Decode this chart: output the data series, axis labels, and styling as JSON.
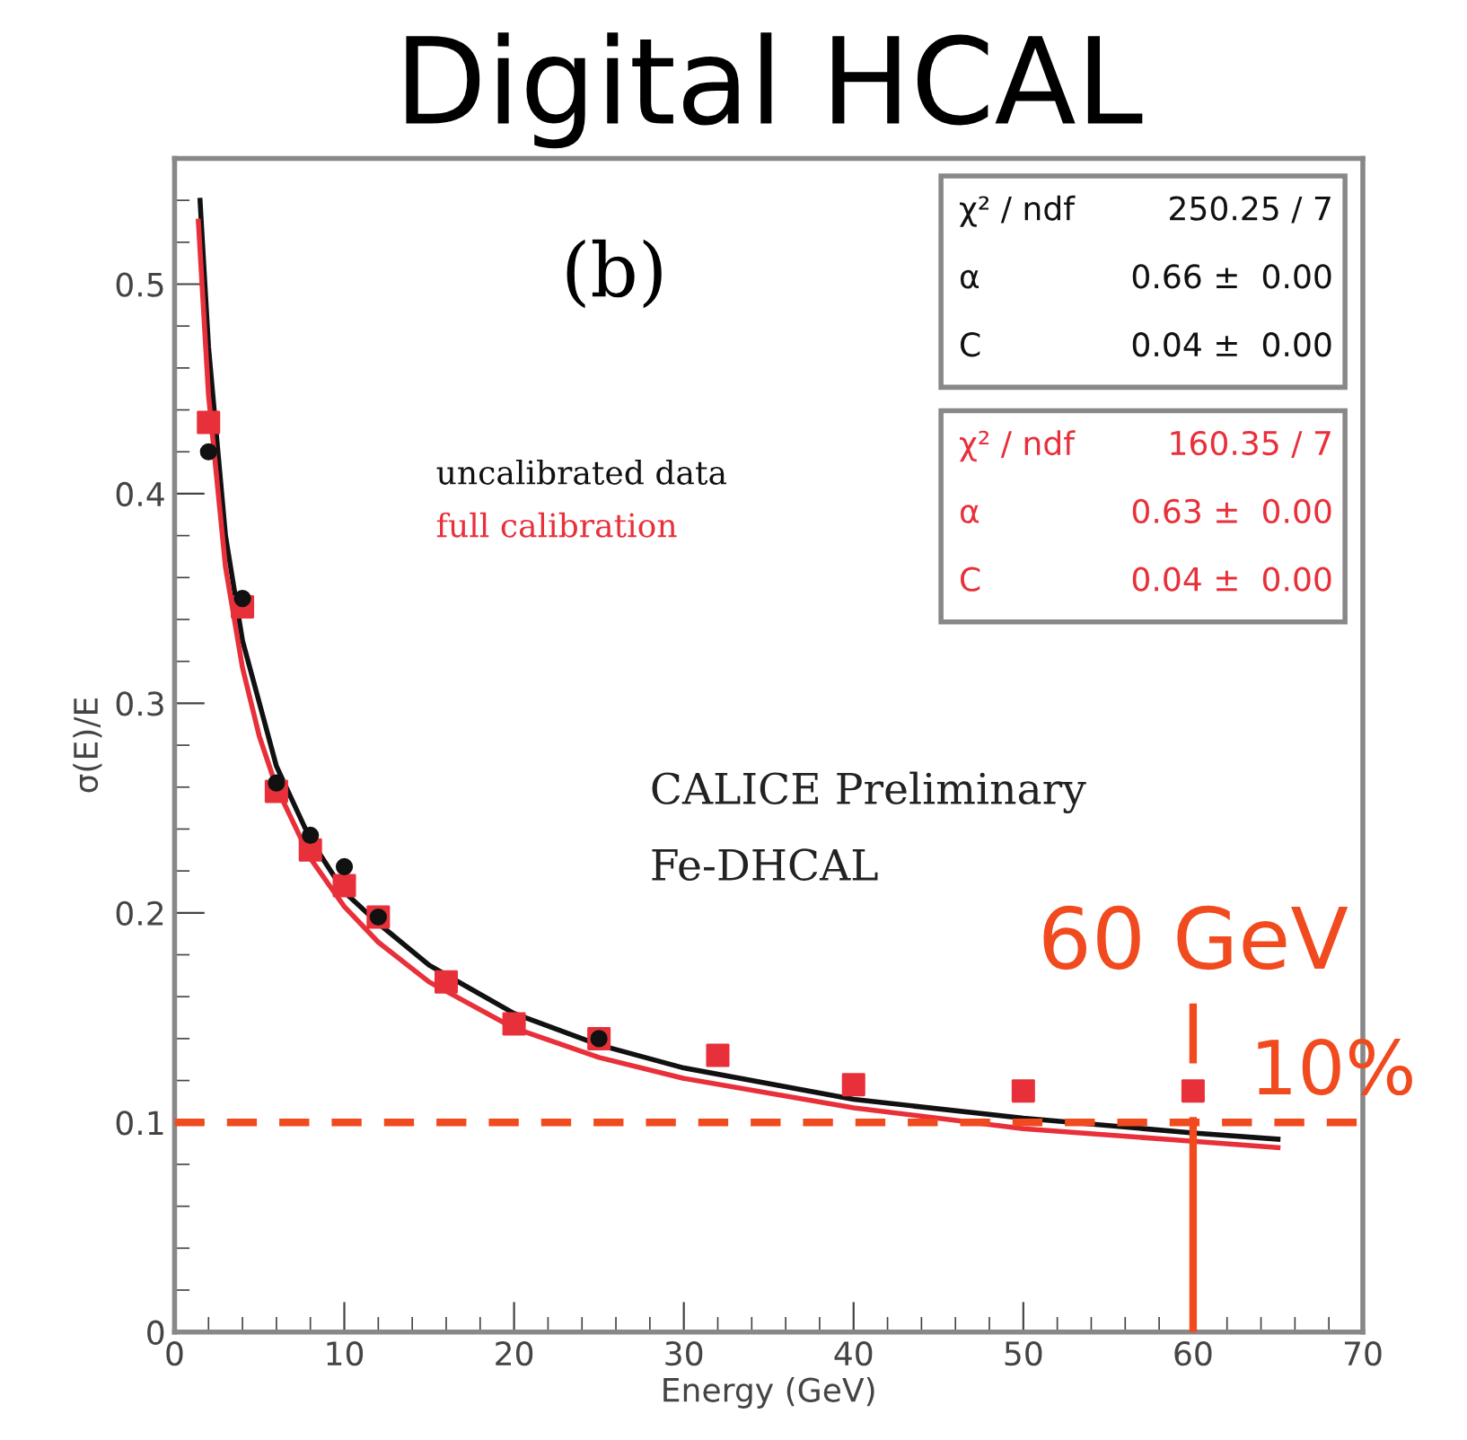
{
  "chart_data": {
    "type": "scatter",
    "title": "Digital HCAL",
    "xlabel": "Energy (GeV)",
    "ylabel": "σ(E)/E",
    "xlim": [
      0,
      70
    ],
    "xticks": [
      0,
      10,
      20,
      30,
      40,
      50,
      60,
      70
    ],
    "ylim": [
      0,
      0.56
    ],
    "yticks": [
      0,
      0.1,
      0.2,
      0.3,
      0.4,
      0.5
    ],
    "grid": false,
    "series": [
      {
        "name": "uncalibrated data",
        "marker": "circle",
        "color": "#111111",
        "x": [
          2,
          4,
          6,
          8,
          10,
          12,
          25
        ],
        "values": [
          0.42,
          0.35,
          0.262,
          0.237,
          0.222,
          0.198,
          0.14
        ]
      },
      {
        "name": "full calibration",
        "marker": "square",
        "color": "#e8303a",
        "x": [
          2,
          4,
          6,
          8,
          10,
          12,
          16,
          20,
          25,
          32,
          40,
          50,
          60
        ],
        "values": [
          0.434,
          0.346,
          0.258,
          0.23,
          0.213,
          0.198,
          0.167,
          0.147,
          0.14,
          0.132,
          0.118,
          0.115,
          0.115
        ]
      },
      {
        "type": "line",
        "marker": "none",
        "color": "#111111",
        "x": [
          1.5,
          2,
          3,
          4,
          5,
          6,
          8,
          10,
          12,
          15,
          20,
          25,
          30,
          40,
          50,
          60,
          65
        ],
        "values": [
          0.54,
          0.47,
          0.38,
          0.33,
          0.3,
          0.27,
          0.235,
          0.21,
          0.195,
          0.175,
          0.152,
          0.137,
          0.126,
          0.111,
          0.102,
          0.095,
          0.092
        ]
      },
      {
        "type": "line",
        "marker": "none",
        "color": "#e8303a",
        "x": [
          1.4,
          2,
          3,
          4,
          5,
          6,
          8,
          10,
          12,
          15,
          20,
          25,
          30,
          40,
          50,
          60,
          65
        ],
        "values": [
          0.53,
          0.447,
          0.365,
          0.317,
          0.284,
          0.26,
          0.226,
          0.203,
          0.186,
          0.167,
          0.145,
          0.131,
          0.121,
          0.107,
          0.097,
          0.091,
          0.088
        ]
      }
    ],
    "ref_lines": [
      {
        "axis": "y",
        "value": 0.1,
        "label": "10%",
        "color": "#f04a1e",
        "line_style": "dashed"
      },
      {
        "axis": "x",
        "value": 60,
        "label": "60 GeV",
        "color": "#f04a1e",
        "line_style": "solid"
      }
    ],
    "annotations": [
      "(b)",
      "χ² / ndf",
      "250.25 / 7",
      "α",
      "0.66 ±  0.00",
      "C",
      "0.04 ±  0.00",
      "χ² / ndf",
      "160.35 / 7",
      "α",
      "0.63 ±  0.00",
      "C",
      "0.04 ±  0.00",
      "CALICE Preliminary",
      "Fe-DHCAL"
    ]
  }
}
